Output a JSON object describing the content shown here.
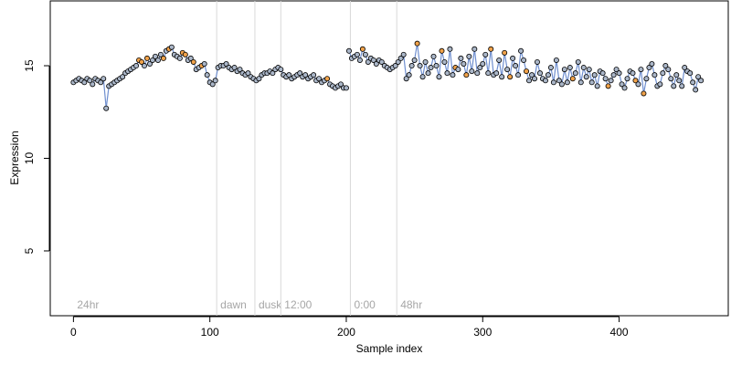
{
  "chart_data": {
    "type": "scatter",
    "title": "",
    "xlabel": "Sample index",
    "ylabel": "Expression",
    "xlim": [
      -17,
      480
    ],
    "ylim": [
      1.5,
      18.5
    ],
    "xticks": [
      0,
      100,
      200,
      300,
      400
    ],
    "yticks": [
      5,
      10,
      15
    ],
    "grid": false,
    "vertical_markers": [
      {
        "x": 0,
        "label": "24hr"
      },
      {
        "x": 105,
        "label": "dawn"
      },
      {
        "x": 133,
        "label": "dusk"
      },
      {
        "x": 152,
        "label": "12:00"
      },
      {
        "x": 203,
        "label": "0:00"
      },
      {
        "x": 237,
        "label": "48hr"
      }
    ],
    "colors": {
      "point_default": "#aab6c8",
      "point_highlight": "#f0a24a",
      "point_edge": "#000000",
      "segment": "#6f8fcf",
      "segment_light": "#b8c8e8",
      "marker_line": "#d9d9d9",
      "marker_label": "#a6a6a6"
    },
    "series": [
      {
        "x": [
          0,
          2,
          4,
          6,
          8,
          10,
          12,
          14,
          16,
          18,
          20,
          22,
          24,
          26,
          28,
          30,
          32,
          34,
          36,
          38,
          40,
          42,
          44,
          46,
          48,
          50,
          52,
          54,
          56,
          58,
          60,
          62,
          64,
          66,
          68,
          70,
          72,
          74,
          76,
          78,
          80,
          82,
          84,
          86,
          88,
          90,
          92,
          94,
          96,
          98,
          100,
          102,
          104,
          106,
          108,
          110,
          112,
          114,
          116,
          118,
          120,
          122,
          124,
          126,
          128,
          130,
          132,
          134,
          136,
          138,
          140,
          142,
          144,
          146,
          148,
          150,
          152,
          154,
          156,
          158,
          160,
          162,
          164,
          166,
          168,
          170,
          172,
          174,
          176,
          178,
          180,
          182,
          184,
          186,
          188,
          190,
          192,
          194,
          196,
          198,
          200
        ],
        "y": [
          14.1,
          14.2,
          14.3,
          14.2,
          14.1,
          14.3,
          14.2,
          14.0,
          14.3,
          14.2,
          14.1,
          14.3,
          12.7,
          13.9,
          14.0,
          14.1,
          14.2,
          14.3,
          14.4,
          14.6,
          14.7,
          14.8,
          14.9,
          15.0,
          15.3,
          15.2,
          15.0,
          15.4,
          15.1,
          15.3,
          15.5,
          15.3,
          15.6,
          15.4,
          15.8,
          15.9,
          16.0,
          15.6,
          15.5,
          15.4,
          15.7,
          15.6,
          15.3,
          15.4,
          15.2,
          14.8,
          14.9,
          15.0,
          15.1,
          14.5,
          14.1,
          14.0,
          14.2,
          14.9,
          15.0,
          15.0,
          15.1,
          14.9,
          14.8,
          14.9,
          14.7,
          14.8,
          14.6,
          14.5,
          14.6,
          14.4,
          14.3,
          14.2,
          14.3,
          14.5,
          14.6,
          14.6,
          14.7,
          14.6,
          14.8,
          14.9,
          14.8,
          14.5,
          14.4,
          14.5,
          14.3,
          14.4,
          14.5,
          14.6,
          14.4,
          14.5,
          14.3,
          14.4,
          14.5,
          14.2,
          14.3,
          14.1,
          14.2,
          14.3,
          14.0,
          13.9,
          13.8,
          13.9,
          14.0,
          13.8,
          13.8
        ],
        "highlight": [
          0,
          0,
          0,
          0,
          0,
          0,
          0,
          0,
          0,
          0,
          0,
          0,
          0,
          0,
          0,
          0,
          0,
          0,
          0,
          0,
          0,
          0,
          0,
          0,
          1,
          1,
          0,
          1,
          0,
          0,
          0,
          0,
          0,
          1,
          0,
          1,
          0,
          0,
          0,
          0,
          1,
          1,
          0,
          0,
          1,
          0,
          0,
          1,
          0,
          0,
          0,
          0,
          0,
          0,
          0,
          0,
          0,
          0,
          0,
          0,
          0,
          0,
          0,
          0,
          0,
          0,
          0,
          0,
          0,
          0,
          0,
          0,
          0,
          0,
          0,
          0,
          0,
          0,
          0,
          0,
          0,
          0,
          0,
          0,
          0,
          0,
          0,
          0,
          0,
          0,
          0,
          0,
          0,
          1,
          0,
          0,
          0,
          0,
          0,
          0,
          0
        ]
      },
      {
        "x": [
          202,
          204,
          206,
          208,
          210,
          212,
          214,
          216,
          218,
          220,
          222,
          224,
          226,
          228,
          230,
          232,
          234,
          236,
          238,
          240,
          242,
          244,
          246,
          248,
          250,
          252,
          254,
          256,
          258,
          260,
          262,
          264,
          266,
          268,
          270,
          272,
          274,
          276,
          278,
          280,
          282,
          284,
          286,
          288,
          290,
          292,
          294,
          296,
          298,
          300,
          302,
          304,
          306,
          308,
          310,
          312,
          314,
          316,
          318,
          320,
          322,
          324,
          326,
          328,
          330,
          332,
          334,
          336,
          338,
          340,
          342,
          344,
          346,
          348,
          350,
          352,
          354,
          356,
          358,
          360,
          362,
          364,
          366,
          368,
          370,
          372,
          374,
          376,
          378,
          380,
          382,
          384,
          386,
          388,
          390,
          392,
          394,
          396,
          398,
          400,
          402,
          404,
          406,
          408,
          410,
          412,
          414,
          416,
          418,
          420,
          422,
          424,
          426,
          428,
          430,
          432,
          434,
          436,
          438,
          440,
          442,
          444,
          446,
          448,
          450,
          452,
          454,
          456,
          458,
          460
        ],
        "y": [
          15.8,
          15.4,
          15.5,
          15.6,
          15.3,
          15.9,
          15.6,
          15.2,
          15.4,
          15.3,
          15.1,
          15.3,
          15.2,
          15.0,
          14.9,
          14.8,
          14.9,
          15.0,
          15.2,
          15.4,
          15.6,
          14.3,
          14.5,
          15.0,
          15.3,
          16.2,
          15.0,
          14.4,
          15.2,
          14.6,
          14.9,
          15.5,
          15.0,
          14.4,
          15.8,
          15.2,
          14.6,
          15.9,
          14.5,
          14.9,
          14.8,
          15.4,
          15.1,
          14.5,
          15.5,
          14.7,
          15.9,
          14.6,
          14.9,
          15.1,
          15.6,
          14.6,
          15.9,
          14.5,
          14.6,
          15.3,
          14.4,
          15.7,
          14.8,
          14.4,
          15.4,
          15.0,
          14.5,
          15.8,
          15.3,
          14.7,
          14.2,
          14.5,
          14.3,
          15.2,
          14.6,
          14.3,
          14.2,
          14.5,
          14.9,
          14.1,
          15.3,
          14.2,
          14.0,
          14.8,
          14.1,
          14.9,
          14.3,
          14.6,
          15.2,
          14.1,
          14.9,
          14.4,
          14.8,
          14.1,
          14.5,
          13.9,
          14.7,
          14.6,
          14.3,
          13.9,
          14.2,
          14.5,
          14.8,
          14.6,
          14.0,
          13.8,
          14.3,
          14.7,
          14.6,
          14.2,
          14.0,
          14.8,
          13.5,
          14.3,
          14.9,
          15.1,
          14.5,
          13.9,
          14.0,
          14.6,
          15.0,
          14.8,
          14.3,
          13.9,
          14.5,
          14.2,
          13.9,
          14.9,
          14.7,
          14.6,
          14.1,
          13.7,
          14.4,
          14.2
        ],
        "highlight": [
          0,
          0,
          0,
          0,
          0,
          1,
          0,
          0,
          0,
          0,
          0,
          0,
          0,
          0,
          0,
          0,
          0,
          0,
          0,
          0,
          0,
          0,
          0,
          0,
          0,
          1,
          0,
          0,
          0,
          0,
          0,
          0,
          0,
          0,
          1,
          0,
          0,
          0,
          0,
          1,
          0,
          0,
          0,
          1,
          0,
          0,
          0,
          0,
          0,
          0,
          0,
          0,
          1,
          0,
          0,
          0,
          0,
          1,
          0,
          1,
          0,
          0,
          0,
          0,
          0,
          1,
          0,
          0,
          0,
          0,
          0,
          0,
          0,
          0,
          0,
          0,
          0,
          0,
          0,
          0,
          0,
          0,
          1,
          0,
          0,
          0,
          0,
          0,
          0,
          0,
          0,
          0,
          0,
          0,
          0,
          1,
          0,
          0,
          0,
          0,
          0,
          0,
          0,
          0,
          0,
          1,
          0,
          0,
          1,
          0,
          0,
          0,
          0,
          0,
          0,
          0,
          0,
          0,
          0,
          0,
          0,
          0,
          0,
          0,
          0,
          0,
          0,
          0,
          0,
          0
        ]
      }
    ]
  }
}
